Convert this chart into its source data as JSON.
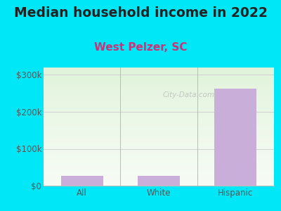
{
  "title": "Median household income in 2022",
  "subtitle": "West Pelzer, SC",
  "categories": [
    "All",
    "White",
    "Hispanic"
  ],
  "values": [
    27000,
    27000,
    262500
  ],
  "bar_color": "#c8aed8",
  "title_fontsize": 13.5,
  "subtitle_fontsize": 11,
  "subtitle_color": "#cc3377",
  "title_color": "#222222",
  "tick_color": "#555555",
  "bg_outer": "#00e8f8",
  "ylim": [
    0,
    320000
  ],
  "yticks": [
    0,
    100000,
    200000,
    300000
  ],
  "ytick_labels": [
    "$0",
    "$100k",
    "$200k",
    "$300k"
  ],
  "watermark": "City-Data.com",
  "bar_width": 0.55
}
